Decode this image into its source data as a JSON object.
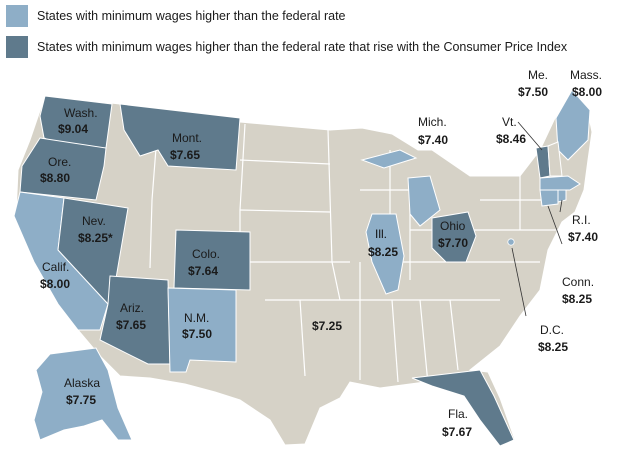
{
  "colors": {
    "higher": "#8eaec7",
    "higher_cpi": "#5f7a8c",
    "base": "#d6d2c7",
    "border": "#ffffff"
  },
  "legend": {
    "higher": "States with minimum wages higher than the federal rate",
    "higher_cpi": "States with minimum wages higher than the federal rate that rise with the Consumer Price Index"
  },
  "federal_rate": "$7.25",
  "states": [
    {
      "name": "Wash.",
      "wage": "$9.04",
      "category": "higher_cpi"
    },
    {
      "name": "Ore.",
      "wage": "$8.80",
      "category": "higher_cpi"
    },
    {
      "name": "Calif.",
      "wage": "$8.00",
      "category": "higher"
    },
    {
      "name": "Nev.",
      "wage": "$8.25*",
      "category": "higher_cpi"
    },
    {
      "name": "Mont.",
      "wage": "$7.65",
      "category": "higher_cpi"
    },
    {
      "name": "Colo.",
      "wage": "$7.64",
      "category": "higher_cpi"
    },
    {
      "name": "Ariz.",
      "wage": "$7.65",
      "category": "higher_cpi"
    },
    {
      "name": "N.M.",
      "wage": "$7.50",
      "category": "higher"
    },
    {
      "name": "Alaska",
      "wage": "$7.75",
      "category": "higher"
    },
    {
      "name": "Mich.",
      "wage": "$7.40",
      "category": "higher"
    },
    {
      "name": "Ill.",
      "wage": "$8.25",
      "category": "higher"
    },
    {
      "name": "Ohio",
      "wage": "$7.70",
      "category": "higher_cpi"
    },
    {
      "name": "Fla.",
      "wage": "$7.67",
      "category": "higher_cpi"
    },
    {
      "name": "Me.",
      "wage": "$7.50",
      "category": "higher"
    },
    {
      "name": "Mass.",
      "wage": "$8.00",
      "category": "higher"
    },
    {
      "name": "Vt.",
      "wage": "$8.46",
      "category": "higher_cpi"
    },
    {
      "name": "R.I.",
      "wage": "$7.40",
      "category": "higher"
    },
    {
      "name": "Conn.",
      "wage": "$8.25",
      "category": "higher"
    },
    {
      "name": "D.C.",
      "wage": "$8.25",
      "category": "higher"
    }
  ]
}
